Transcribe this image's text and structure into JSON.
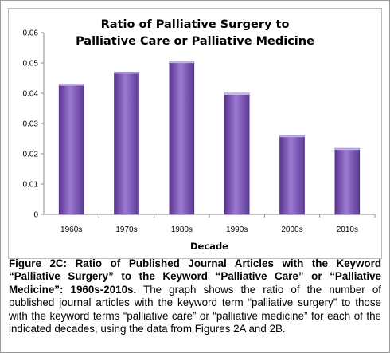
{
  "chart_data": {
    "type": "bar",
    "title_lines": [
      "Ratio of Palliative Surgery to",
      "Palliative Care or Palliative Medicine"
    ],
    "categories": [
      "1960s",
      "1970s",
      "1980s",
      "1990s",
      "2000s",
      "2010s"
    ],
    "values": [
      0.043,
      0.047,
      0.0505,
      0.04,
      0.026,
      0.0218
    ],
    "xlabel": "Decade",
    "ylabel": "",
    "ylim": [
      0,
      0.06
    ],
    "yticks": [
      "0",
      "0.01",
      "0.02",
      "0.03",
      "0.04",
      "0.05",
      "0.06"
    ],
    "grid": false,
    "legend": "none",
    "bar_color": "#7a55b8"
  },
  "caption": {
    "bold": "Figure 2C: Ratio of Published Journal Articles with the Keyword “Palliative Surgery” to the Keyword “Palliative Care” or “Palliative Medicine”: 1960s-2010s.",
    "text": " The graph shows the ratio of the number of published journal articles with the keyword term “palliative surgery” to those with the keyword terms “palliative care” or “palliative medicine” for each of the indicated decades, using the data from Figures 2A and 2B."
  }
}
